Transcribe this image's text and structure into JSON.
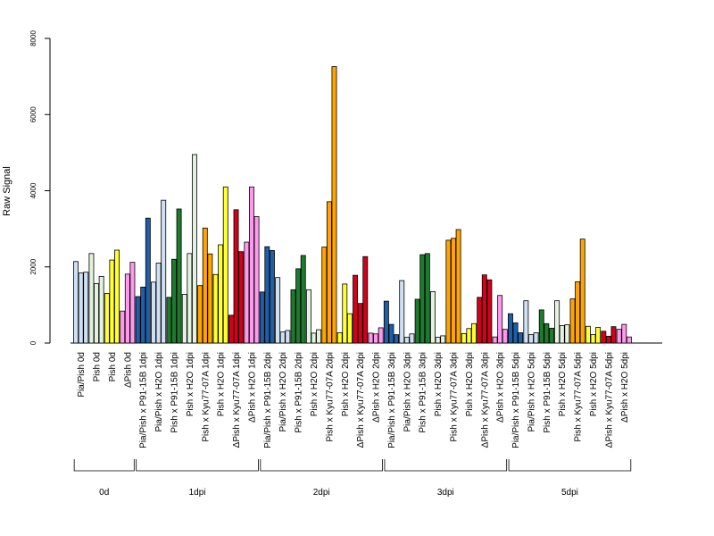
{
  "chart_data": {
    "type": "bar",
    "title": "",
    "xlabel": "",
    "ylabel": "Raw Signal",
    "ylim": [
      0,
      8000
    ],
    "yticks": [
      0,
      2000,
      4000,
      6000,
      8000
    ],
    "grid": false,
    "legend": "none",
    "categories": [
      "Pia/Pish 0d",
      "Pish 0d",
      "Pish 0d",
      "ΔPish 0d",
      "Pia/Pish x P91-15B 1dpi",
      "Pia/Pish x H2O 1dpi",
      "Pish x P91-15B 1dpi",
      "Pish x H2O 1dpi",
      "Pish x Kyu77-07A 1dpi",
      "Pish x H2O 1dpi",
      "ΔPish x Kyu77-07A 1dpi",
      "ΔPish x H2O 1dpi",
      "Pia/Pish x P91-15B 2dpi",
      "Pia/Pish x H2O 2dpi",
      "Pish x P91-15B 2dpi",
      "Pish x H2O 2dpi",
      "Pish x Kyu77-07A 2dpi",
      "Pish x H2O 2dpi",
      "ΔPish x Kyu77-07A 2dpi",
      "ΔPish x H2O 2dpi",
      "Pia/Pish x P91-15B 3dpi",
      "Pia/Pish x H2O 3dpi",
      "Pish x P91-15B 3dpi",
      "Pish x H2O 3dpi",
      "Pish x Kyu77-07A 3dpi",
      "Pish x H2O 3dpi",
      "ΔPish x Kyu77-07A 3dpi",
      "ΔPish x H2O 3dpi",
      "Pia/Pish x P91-15B 5dpi",
      "Pia/Pish x H2O 5dpi",
      "Pish x P91-15B 5dpi",
      "Pish x H2O 5dpi",
      "Pish x Kyu77-07A 5dpi",
      "Pish x H2O 5dpi",
      "ΔPish x Kyu77-07A 5dpi",
      "ΔPish x H2O 5dpi"
    ],
    "category_colors": [
      "#cfe0f3",
      "#e3f3df",
      "#ffff33",
      "#ff99ee",
      "#1f5fa8",
      "#cfe0f3",
      "#1e7a2e",
      "#e3f3df",
      "#ffa500",
      "#ffff33",
      "#d0021b",
      "#ff99ee",
      "#1f5fa8",
      "#cfe0f3",
      "#1e7a2e",
      "#e3f3df",
      "#ffa500",
      "#ffff33",
      "#d0021b",
      "#ff99ee",
      "#1f5fa8",
      "#cfe0f3",
      "#1e7a2e",
      "#e3f3df",
      "#ffa500",
      "#ffff33",
      "#d0021b",
      "#ff99ee",
      "#1f5fa8",
      "#cfe0f3",
      "#1e7a2e",
      "#e3f3df",
      "#ffa500",
      "#ffff33",
      "#d0021b",
      "#ff99ee"
    ],
    "values": [
      [
        2140,
        1840,
        1860
      ],
      [
        2350,
        1560,
        1750
      ],
      [
        1300,
        2180,
        2440
      ],
      [
        840,
        1810,
        2120
      ],
      [
        1220,
        1470,
        3280
      ],
      [
        1600,
        2100,
        3750
      ],
      [
        1200,
        2200,
        3520
      ],
      [
        1280,
        2350,
        4950
      ],
      [
        1510,
        3020,
        2340
      ],
      [
        1800,
        2580,
        4100
      ],
      [
        730,
        3500,
        2400
      ],
      [
        2650,
        4100,
        3320
      ],
      [
        1340,
        2530,
        2430
      ],
      [
        1720,
        290,
        330
      ],
      [
        1400,
        1950,
        2300
      ],
      [
        1400,
        260,
        350
      ],
      [
        2520,
        3710,
        7260
      ],
      [
        270,
        1550,
        770
      ],
      [
        1780,
        1040,
        2270
      ],
      [
        260,
        240,
        400
      ],
      [
        1100,
        490,
        220
      ],
      [
        1640,
        150,
        240
      ],
      [
        1150,
        2320,
        2350
      ],
      [
        1350,
        150,
        190
      ],
      [
        2700,
        2750,
        2980
      ],
      [
        250,
        380,
        510
      ],
      [
        1200,
        1790,
        1660
      ],
      [
        160,
        1250,
        360
      ],
      [
        770,
        530,
        270
      ],
      [
        1110,
        220,
        270
      ],
      [
        870,
        510,
        390
      ],
      [
        1110,
        460,
        480
      ],
      [
        1160,
        1610,
        2730
      ],
      [
        440,
        220,
        410
      ],
      [
        310,
        180,
        430
      ],
      [
        360,
        490,
        160
      ]
    ],
    "groups": [
      {
        "label": "0d",
        "count": 4
      },
      {
        "label": "1dpi",
        "count": 8
      },
      {
        "label": "2dpi",
        "count": 8
      },
      {
        "label": "3dpi",
        "count": 8
      },
      {
        "label": "5dpi",
        "count": 8
      }
    ]
  }
}
